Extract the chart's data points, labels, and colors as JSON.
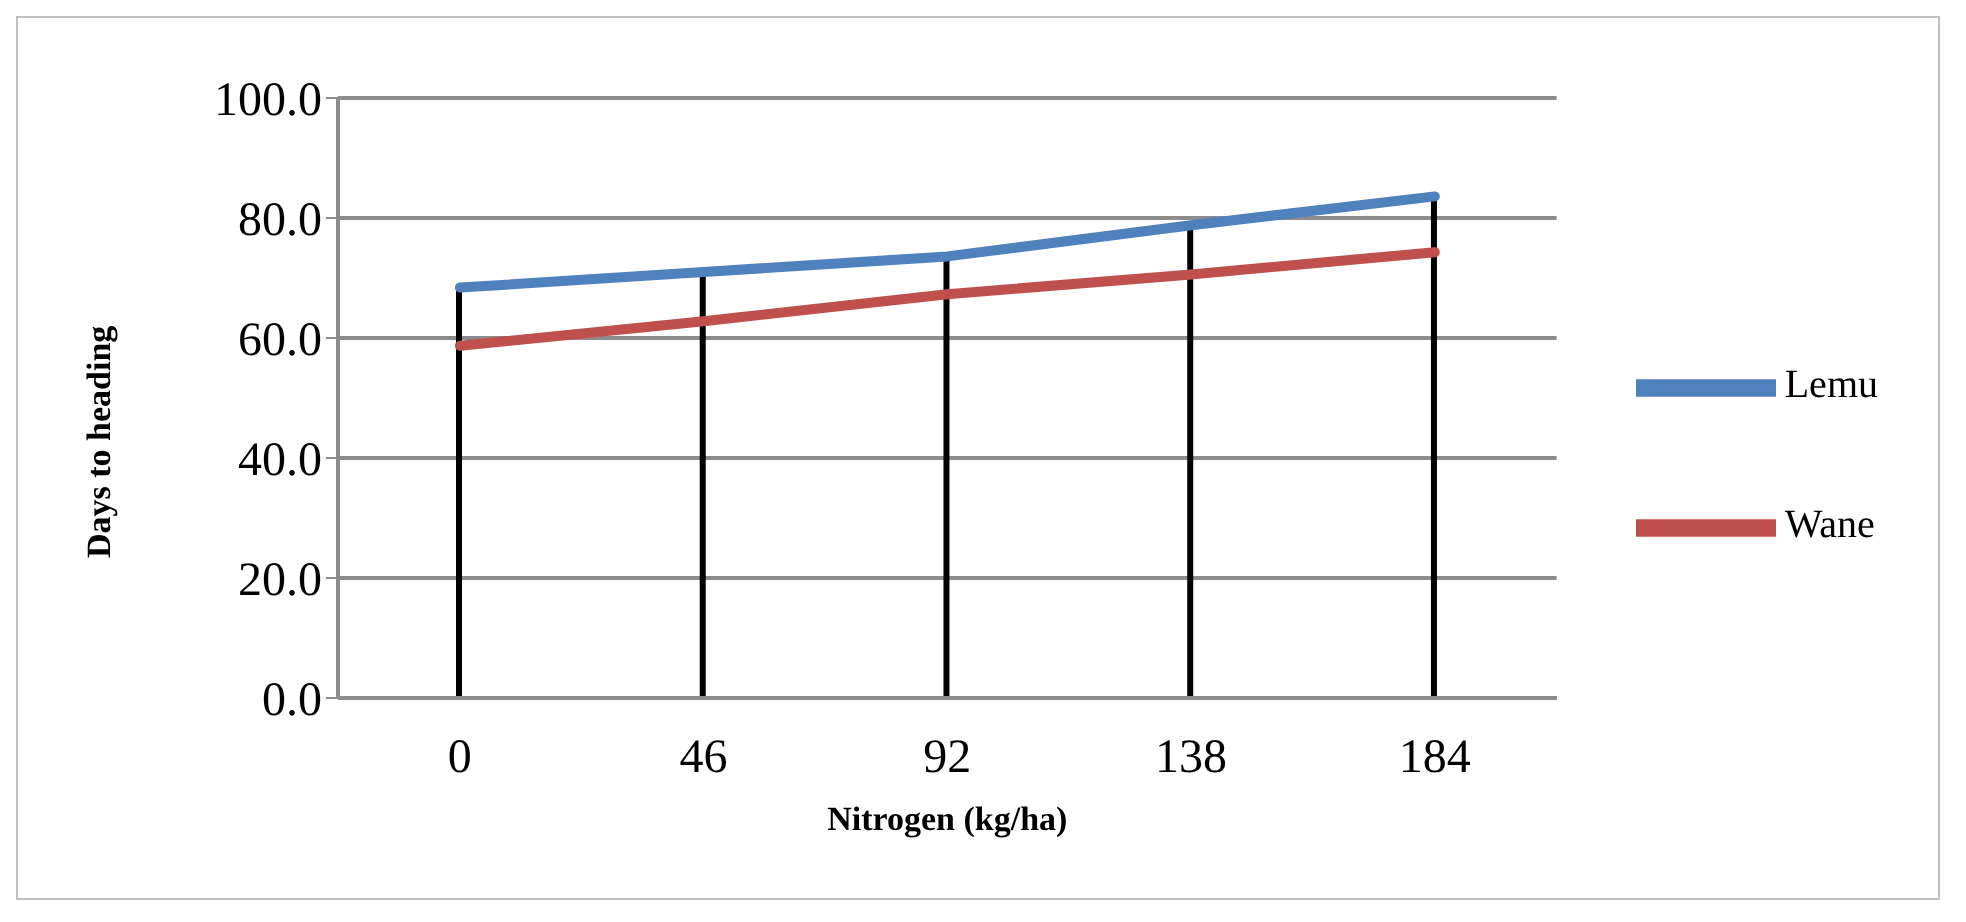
{
  "chart_data": {
    "type": "line",
    "xlabel": "Nitrogen (kg/ha)",
    "ylabel": "Days to heading",
    "categories": [
      "0",
      "46",
      "92",
      "138",
      "184"
    ],
    "series": [
      {
        "type": "bar",
        "color": "#000000",
        "values": [
          68.4,
          71.0,
          73.6,
          78.8,
          83.6
        ]
      },
      {
        "name": "Lemu",
        "color": "#4f81bd",
        "values": [
          68.4,
          71.0,
          73.6,
          78.8,
          83.6
        ]
      },
      {
        "name": "Wane",
        "color": "#c0504d",
        "values": [
          58.7,
          62.8,
          67.3,
          70.6,
          74.3
        ]
      }
    ],
    "ylim": [
      0,
      100
    ],
    "yticks": [
      {
        "value": 0,
        "label": "0.0"
      },
      {
        "value": 20,
        "label": "20.0"
      },
      {
        "value": 40,
        "label": "40.0"
      },
      {
        "value": 60,
        "label": "60.0"
      },
      {
        "value": 80,
        "label": "80.0"
      },
      {
        "value": 100,
        "label": "100.0"
      }
    ],
    "grid": "y",
    "legend": "right",
    "marker": "none",
    "line_style": "solid"
  }
}
